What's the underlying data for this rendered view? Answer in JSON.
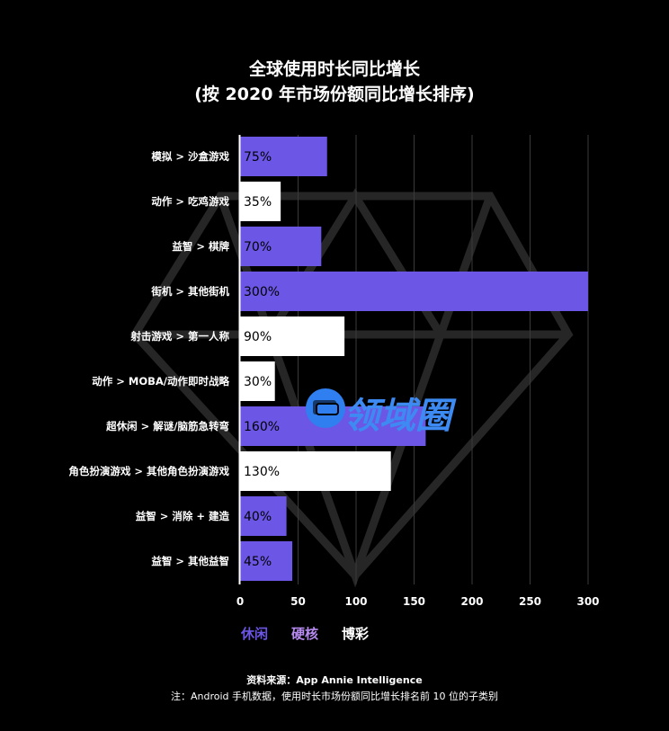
{
  "header": {
    "title": "全球使用时长同比增长",
    "subtitle": "(按 2020 年市场份额同比增长排序)"
  },
  "legend": [
    {
      "label": "休闲",
      "color": "#6b56e6"
    },
    {
      "label": "硬核",
      "color": "#b78bf0"
    },
    {
      "label": "博彩",
      "color": "#ffffff"
    }
  ],
  "footer": {
    "source": "资料来源：App Annie Intelligence",
    "note": "注：Android 手机数据，使用时长市场份额同比增长排名前 10 位的子类别"
  },
  "watermark": {
    "text": "领域圈"
  },
  "chart_data": {
    "type": "bar",
    "orientation": "horizontal",
    "categories": [
      "模拟 > 沙盒游戏",
      "动作 > 吃鸡游戏",
      "益智 > 棋牌",
      "街机 > 其他街机",
      "射击游戏 > 第一人称",
      "动作 > MOBA/动作即时战略",
      "超休闲 > 解谜/脑筋急转弯",
      "角色扮演游戏 > 其他角色扮演游戏",
      "益智 > 消除 + 建造",
      "益智 > 其他益智"
    ],
    "values": [
      75,
      35,
      70,
      300,
      90,
      30,
      160,
      130,
      40,
      45
    ],
    "labels": [
      "75%",
      "35%",
      "70%",
      "300%",
      "90%",
      "30%",
      "160%",
      "130%",
      "40%",
      "45%"
    ],
    "colors": [
      "#6b56e6",
      "#ffffff",
      "#6b56e6",
      "#6b56e6",
      "#ffffff",
      "#ffffff",
      "#6b56e6",
      "#ffffff",
      "#6b56e6",
      "#6b56e6"
    ],
    "xlim": [
      0,
      300
    ],
    "xticks": [
      0,
      50,
      100,
      150,
      200,
      250,
      300
    ],
    "grid": true
  }
}
